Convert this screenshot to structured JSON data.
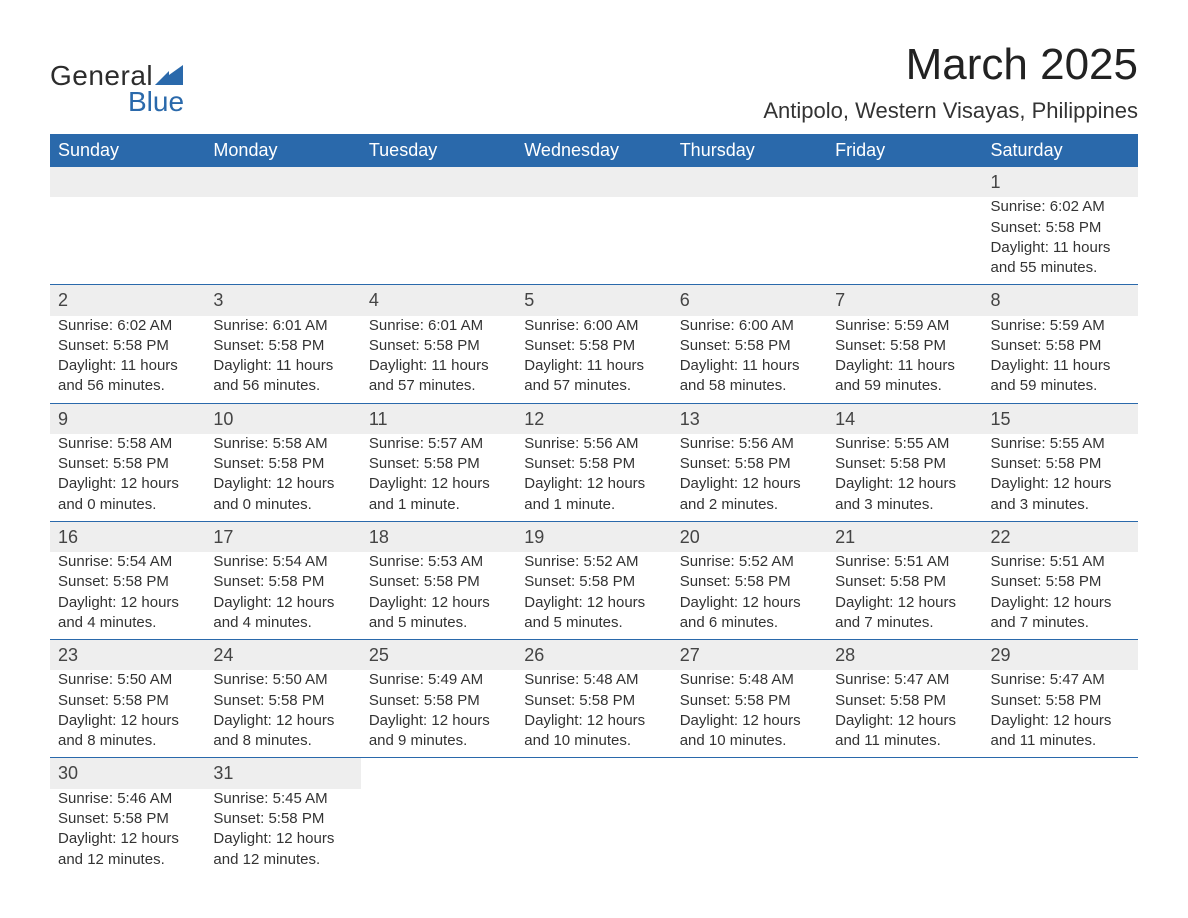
{
  "logo": {
    "word1": "General",
    "word2": "Blue",
    "sail_color": "#2a69ab"
  },
  "title": "March 2025",
  "location": "Antipolo, Western Visayas, Philippines",
  "colors": {
    "header_bg": "#2a69ab",
    "header_text": "#ffffff",
    "daynum_bg": "#eeeeee",
    "row_divider": "#2a69ab",
    "body_text": "#333333",
    "page_bg": "#ffffff"
  },
  "typography": {
    "title_fontsize_pt": 33,
    "location_fontsize_pt": 17,
    "dayheader_fontsize_pt": 14,
    "daynum_fontsize_pt": 14,
    "body_fontsize_pt": 11,
    "font_family": "Arial"
  },
  "day_headers": [
    "Sunday",
    "Monday",
    "Tuesday",
    "Wednesday",
    "Thursday",
    "Friday",
    "Saturday"
  ],
  "weeks": [
    [
      null,
      null,
      null,
      null,
      null,
      null,
      {
        "n": "1",
        "sunrise": "Sunrise: 6:02 AM",
        "sunset": "Sunset: 5:58 PM",
        "daylight": "Daylight: 11 hours and 55 minutes."
      }
    ],
    [
      {
        "n": "2",
        "sunrise": "Sunrise: 6:02 AM",
        "sunset": "Sunset: 5:58 PM",
        "daylight": "Daylight: 11 hours and 56 minutes."
      },
      {
        "n": "3",
        "sunrise": "Sunrise: 6:01 AM",
        "sunset": "Sunset: 5:58 PM",
        "daylight": "Daylight: 11 hours and 56 minutes."
      },
      {
        "n": "4",
        "sunrise": "Sunrise: 6:01 AM",
        "sunset": "Sunset: 5:58 PM",
        "daylight": "Daylight: 11 hours and 57 minutes."
      },
      {
        "n": "5",
        "sunrise": "Sunrise: 6:00 AM",
        "sunset": "Sunset: 5:58 PM",
        "daylight": "Daylight: 11 hours and 57 minutes."
      },
      {
        "n": "6",
        "sunrise": "Sunrise: 6:00 AM",
        "sunset": "Sunset: 5:58 PM",
        "daylight": "Daylight: 11 hours and 58 minutes."
      },
      {
        "n": "7",
        "sunrise": "Sunrise: 5:59 AM",
        "sunset": "Sunset: 5:58 PM",
        "daylight": "Daylight: 11 hours and 59 minutes."
      },
      {
        "n": "8",
        "sunrise": "Sunrise: 5:59 AM",
        "sunset": "Sunset: 5:58 PM",
        "daylight": "Daylight: 11 hours and 59 minutes."
      }
    ],
    [
      {
        "n": "9",
        "sunrise": "Sunrise: 5:58 AM",
        "sunset": "Sunset: 5:58 PM",
        "daylight": "Daylight: 12 hours and 0 minutes."
      },
      {
        "n": "10",
        "sunrise": "Sunrise: 5:58 AM",
        "sunset": "Sunset: 5:58 PM",
        "daylight": "Daylight: 12 hours and 0 minutes."
      },
      {
        "n": "11",
        "sunrise": "Sunrise: 5:57 AM",
        "sunset": "Sunset: 5:58 PM",
        "daylight": "Daylight: 12 hours and 1 minute."
      },
      {
        "n": "12",
        "sunrise": "Sunrise: 5:56 AM",
        "sunset": "Sunset: 5:58 PM",
        "daylight": "Daylight: 12 hours and 1 minute."
      },
      {
        "n": "13",
        "sunrise": "Sunrise: 5:56 AM",
        "sunset": "Sunset: 5:58 PM",
        "daylight": "Daylight: 12 hours and 2 minutes."
      },
      {
        "n": "14",
        "sunrise": "Sunrise: 5:55 AM",
        "sunset": "Sunset: 5:58 PM",
        "daylight": "Daylight: 12 hours and 3 minutes."
      },
      {
        "n": "15",
        "sunrise": "Sunrise: 5:55 AM",
        "sunset": "Sunset: 5:58 PM",
        "daylight": "Daylight: 12 hours and 3 minutes."
      }
    ],
    [
      {
        "n": "16",
        "sunrise": "Sunrise: 5:54 AM",
        "sunset": "Sunset: 5:58 PM",
        "daylight": "Daylight: 12 hours and 4 minutes."
      },
      {
        "n": "17",
        "sunrise": "Sunrise: 5:54 AM",
        "sunset": "Sunset: 5:58 PM",
        "daylight": "Daylight: 12 hours and 4 minutes."
      },
      {
        "n": "18",
        "sunrise": "Sunrise: 5:53 AM",
        "sunset": "Sunset: 5:58 PM",
        "daylight": "Daylight: 12 hours and 5 minutes."
      },
      {
        "n": "19",
        "sunrise": "Sunrise: 5:52 AM",
        "sunset": "Sunset: 5:58 PM",
        "daylight": "Daylight: 12 hours and 5 minutes."
      },
      {
        "n": "20",
        "sunrise": "Sunrise: 5:52 AM",
        "sunset": "Sunset: 5:58 PM",
        "daylight": "Daylight: 12 hours and 6 minutes."
      },
      {
        "n": "21",
        "sunrise": "Sunrise: 5:51 AM",
        "sunset": "Sunset: 5:58 PM",
        "daylight": "Daylight: 12 hours and 7 minutes."
      },
      {
        "n": "22",
        "sunrise": "Sunrise: 5:51 AM",
        "sunset": "Sunset: 5:58 PM",
        "daylight": "Daylight: 12 hours and 7 minutes."
      }
    ],
    [
      {
        "n": "23",
        "sunrise": "Sunrise: 5:50 AM",
        "sunset": "Sunset: 5:58 PM",
        "daylight": "Daylight: 12 hours and 8 minutes."
      },
      {
        "n": "24",
        "sunrise": "Sunrise: 5:50 AM",
        "sunset": "Sunset: 5:58 PM",
        "daylight": "Daylight: 12 hours and 8 minutes."
      },
      {
        "n": "25",
        "sunrise": "Sunrise: 5:49 AM",
        "sunset": "Sunset: 5:58 PM",
        "daylight": "Daylight: 12 hours and 9 minutes."
      },
      {
        "n": "26",
        "sunrise": "Sunrise: 5:48 AM",
        "sunset": "Sunset: 5:58 PM",
        "daylight": "Daylight: 12 hours and 10 minutes."
      },
      {
        "n": "27",
        "sunrise": "Sunrise: 5:48 AM",
        "sunset": "Sunset: 5:58 PM",
        "daylight": "Daylight: 12 hours and 10 minutes."
      },
      {
        "n": "28",
        "sunrise": "Sunrise: 5:47 AM",
        "sunset": "Sunset: 5:58 PM",
        "daylight": "Daylight: 12 hours and 11 minutes."
      },
      {
        "n": "29",
        "sunrise": "Sunrise: 5:47 AM",
        "sunset": "Sunset: 5:58 PM",
        "daylight": "Daylight: 12 hours and 11 minutes."
      }
    ],
    [
      {
        "n": "30",
        "sunrise": "Sunrise: 5:46 AM",
        "sunset": "Sunset: 5:58 PM",
        "daylight": "Daylight: 12 hours and 12 minutes."
      },
      {
        "n": "31",
        "sunrise": "Sunrise: 5:45 AM",
        "sunset": "Sunset: 5:58 PM",
        "daylight": "Daylight: 12 hours and 12 minutes."
      },
      null,
      null,
      null,
      null,
      null
    ]
  ]
}
